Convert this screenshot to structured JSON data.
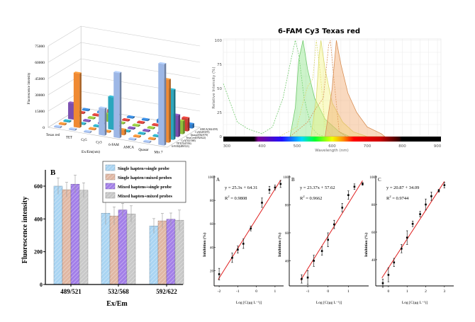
{
  "chart_data": [
    {
      "type": "bar3d",
      "ylabel": "Fluorescence intensity",
      "xlabel": "Ex/Em(nm)",
      "yticks": [
        0,
        15000,
        30000,
        45000,
        60000,
        75000
      ],
      "ylim": [
        0,
        75000
      ],
      "categories": [
        "Texas red",
        "TET",
        "Cy5",
        "Cy3",
        "6-FAM",
        "AMCA",
        "Quasar",
        "Mix 7"
      ],
      "series": [
        {
          "name": "6-FAM(489/521)",
          "color": "#9db7e6",
          "values": [
            0,
            0,
            0,
            25000,
            60000,
            0,
            0,
            75000
          ]
        },
        {
          "name": "TET(524/556)",
          "color": "#f08a33",
          "values": [
            0,
            50000,
            0,
            0,
            5000,
            0,
            0,
            58000
          ]
        },
        {
          "name": "Cy3(532/568)",
          "color": "#2aa6bd",
          "values": [
            0,
            0,
            0,
            30000,
            0,
            0,
            0,
            46000
          ]
        },
        {
          "name": "Texas red(592/622)",
          "color": "#7b4fb0",
          "values": [
            15000,
            0,
            0,
            0,
            0,
            0,
            0,
            20000
          ]
        },
        {
          "name": "Quasar(562/670)",
          "color": "#8fc13c",
          "values": [
            0,
            0,
            7000,
            0,
            0,
            0,
            3000,
            12000
          ]
        },
        {
          "name": "Cy5(649/670)",
          "color": "#d23c35",
          "values": [
            0,
            0,
            8000,
            0,
            0,
            0,
            3000,
            12000
          ]
        },
        {
          "name": "AMCA(362/459)",
          "color": "#2f7fd0",
          "values": [
            0,
            0,
            0,
            0,
            0,
            3000,
            0,
            4000
          ]
        }
      ]
    },
    {
      "type": "area",
      "title": "6-FAM  Cy3  Texas red",
      "xlabel": "Wavelength (nm)",
      "ylabel": "Relative Intensity (%)",
      "xlim": [
        290,
        910
      ],
      "ylim": [
        0,
        100
      ],
      "xticks": [
        300,
        400,
        500,
        600,
        700,
        800,
        900
      ],
      "yticks": [
        0,
        25,
        50,
        75,
        100
      ],
      "grid": true,
      "series": [
        {
          "dye": "6-FAM",
          "kind": "excitation",
          "color": "#7fe07a",
          "points": [
            [
              290,
              55
            ],
            [
              300,
              45
            ],
            [
              310,
              35
            ],
            [
              330,
              15
            ],
            [
              360,
              8
            ],
            [
              400,
              3
            ],
            [
              430,
              10
            ],
            [
              460,
              40
            ],
            [
              480,
              75
            ],
            [
              495,
              100
            ],
            [
              505,
              85
            ],
            [
              520,
              40
            ],
            [
              540,
              10
            ],
            [
              560,
              2
            ],
            [
              580,
              0
            ]
          ]
        },
        {
          "dye": "6-FAM",
          "kind": "emission",
          "color": "#7fe07a",
          "points": [
            [
              480,
              0
            ],
            [
              495,
              30
            ],
            [
              505,
              80
            ],
            [
              517,
              100
            ],
            [
              530,
              70
            ],
            [
              550,
              40
            ],
            [
              580,
              18
            ],
            [
              620,
              5
            ],
            [
              650,
              0
            ]
          ]
        },
        {
          "dye": "Cy3",
          "kind": "excitation",
          "color": "#f2f27a",
          "points": [
            [
              450,
              0
            ],
            [
              500,
              10
            ],
            [
              520,
              40
            ],
            [
              530,
              52
            ],
            [
              545,
              60
            ],
            [
              555,
              100
            ],
            [
              565,
              70
            ],
            [
              580,
              10
            ],
            [
              600,
              0
            ]
          ]
        },
        {
          "dye": "Cy3",
          "kind": "emission",
          "color": "#f2f27a",
          "points": [
            [
              540,
              0
            ],
            [
              555,
              40
            ],
            [
              563,
              85
            ],
            [
              568,
              100
            ],
            [
              580,
              70
            ],
            [
              600,
              35
            ],
            [
              630,
              15
            ],
            [
              660,
              5
            ],
            [
              700,
              0
            ]
          ]
        },
        {
          "dye": "Texas red",
          "kind": "excitation",
          "color": "#f0a060",
          "points": [
            [
              480,
              0
            ],
            [
              530,
              15
            ],
            [
              555,
              30
            ],
            [
              575,
              40
            ],
            [
              590,
              95
            ],
            [
              595,
              100
            ],
            [
              605,
              60
            ],
            [
              620,
              5
            ],
            [
              640,
              0
            ]
          ]
        },
        {
          "dye": "Texas red",
          "kind": "emission",
          "color": "#f0a060",
          "points": [
            [
              580,
              0
            ],
            [
              600,
              50
            ],
            [
              612,
              100
            ],
            [
              625,
              75
            ],
            [
              645,
              45
            ],
            [
              670,
              25
            ],
            [
              700,
              10
            ],
            [
              740,
              3
            ],
            [
              750,
              0
            ]
          ]
        }
      ]
    },
    {
      "type": "bar",
      "panel_label": "B",
      "xlabel": "Ex/Em",
      "ylabel": "Fluorescence intensity",
      "categories": [
        "489/521",
        "532/568",
        "592/622"
      ],
      "yticks": [
        0,
        200,
        400,
        600
      ],
      "ylim": [
        0,
        700
      ],
      "legend": "top-right",
      "series": [
        {
          "name": "Single hapten+single probe",
          "color": "#a9d4f2",
          "values": [
            600,
            435,
            357
          ],
          "err": [
            50,
            70,
            45
          ]
        },
        {
          "name": "Single hapten+mixed probes",
          "color": "#e0b7a3",
          "values": [
            578,
            418,
            388
          ],
          "err": [
            45,
            55,
            45
          ]
        },
        {
          "name": "Mixed haptens+single probe",
          "color": "#a27ee8",
          "values": [
            612,
            455,
            398
          ],
          "err": [
            55,
            40,
            38
          ]
        },
        {
          "name": "Mixed hapten+mixed probes",
          "color": "#c8c8c8",
          "values": [
            575,
            430,
            392
          ],
          "err": [
            45,
            50,
            62
          ]
        }
      ]
    },
    {
      "type": "scatter",
      "panel_label": "A",
      "equation": "y = 25.3x + 64.31",
      "r2_label": "R",
      "r2_value": " = 0.9808",
      "fit": {
        "slope": 25.3,
        "intercept": 64.31
      },
      "xlabel": "Log [C(μg L⁻¹)]",
      "ylabel": "Inhibition (%)",
      "xticks": [
        -2,
        -1,
        0,
        1
      ],
      "yticks": [
        20,
        40,
        60,
        80,
        100
      ],
      "xlim": [
        -2.27,
        1.46
      ],
      "ylim": [
        7,
        100
      ],
      "x": [
        -2,
        -1.3,
        -1,
        -0.7,
        -0.3,
        0.3,
        0.7,
        1,
        1.3
      ],
      "y": [
        17,
        31,
        38,
        43,
        56,
        78,
        89,
        91,
        94
      ],
      "err": [
        5,
        4,
        3,
        4,
        2,
        4,
        3,
        2,
        3
      ]
    },
    {
      "type": "scatter",
      "panel_label": "B",
      "equation": "y = 23.37x + 57.62",
      "r2_label": "R",
      "r2_value": " = 0.9662",
      "fit": {
        "slope": 23.37,
        "intercept": 57.62
      },
      "xlabel": "Log [C(μg L⁻¹)]",
      "ylabel": "Inhibition (%)",
      "xticks": [
        -1,
        0,
        1
      ],
      "yticks": [
        40,
        60,
        80,
        100
      ],
      "xlim": [
        -1.91,
        2.0
      ],
      "ylim": [
        22,
        100
      ],
      "x": [
        -1.3,
        -1,
        -0.7,
        -0.3,
        0,
        0.3,
        0.7,
        1,
        1.3,
        1.7
      ],
      "y": [
        27,
        28,
        40,
        47,
        55,
        66,
        78,
        87,
        93,
        95
      ],
      "err": [
        3,
        5,
        4,
        3,
        5,
        3,
        3,
        3,
        2,
        1
      ]
    },
    {
      "type": "scatter",
      "panel_label": "C",
      "equation": "y = 20.87 + 34.09",
      "r2_label": "R",
      "r2_value": " = 0.9744",
      "fit": {
        "slope": 20.87,
        "intercept": 34.09
      },
      "xlabel": "Log [C(μg L⁻¹)]",
      "ylabel": "Inhibition (%)",
      "xticks": [
        0,
        1,
        2,
        3
      ],
      "yticks": [
        40,
        60,
        80,
        100
      ],
      "xlim": [
        -0.68,
        3.5
      ],
      "ylim": [
        21,
        100
      ],
      "x": [
        -0.3,
        0,
        0.3,
        0.7,
        1,
        1.3,
        1.7,
        2,
        2.3,
        2.7,
        3
      ],
      "y": [
        23,
        29,
        38,
        48,
        56,
        66,
        73,
        80,
        86,
        90,
        94
      ],
      "err": [
        3,
        5,
        3,
        3,
        5,
        2,
        2,
        4,
        3,
        1,
        2
      ]
    }
  ]
}
